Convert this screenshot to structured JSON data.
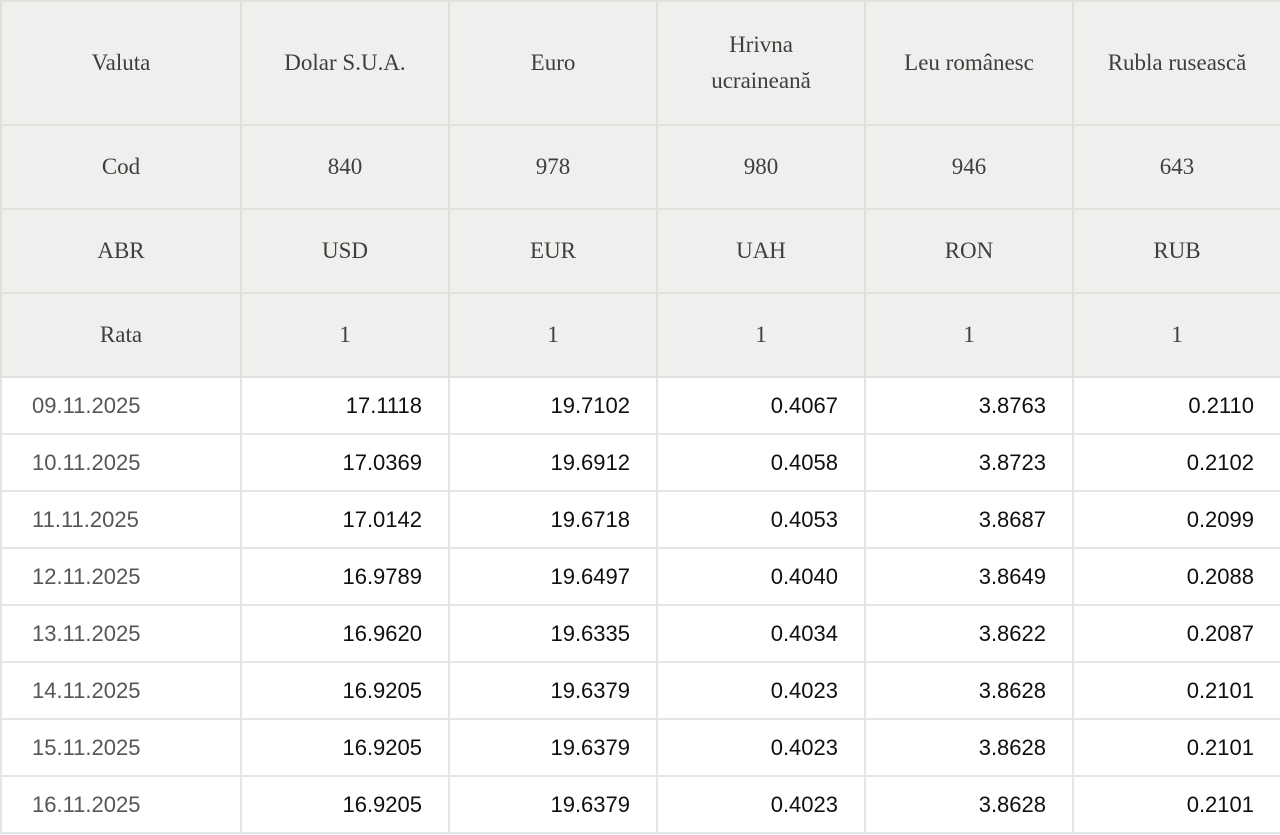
{
  "chart_data": {
    "type": "table",
    "columns": [
      "Valuta",
      "Dolar S.U.A.",
      "Euro",
      "Hrivna ucraineană",
      "Leu românesc",
      "Rubla rusească"
    ],
    "meta_rows": [
      {
        "label": "Cod",
        "values": [
          "840",
          "978",
          "980",
          "946",
          "643"
        ]
      },
      {
        "label": "ABR",
        "values": [
          "USD",
          "EUR",
          "UAH",
          "RON",
          "RUB"
        ]
      },
      {
        "label": "Rata",
        "values": [
          "1",
          "1",
          "1",
          "1",
          "1"
        ]
      }
    ],
    "rate_rows": [
      {
        "date": "09.11.2025",
        "values": [
          "17.1118",
          "19.7102",
          "0.4067",
          "3.8763",
          "0.2110"
        ]
      },
      {
        "date": "10.11.2025",
        "values": [
          "17.0369",
          "19.6912",
          "0.4058",
          "3.8723",
          "0.2102"
        ]
      },
      {
        "date": "11.11.2025",
        "values": [
          "17.0142",
          "19.6718",
          "0.4053",
          "3.8687",
          "0.2099"
        ]
      },
      {
        "date": "12.11.2025",
        "values": [
          "16.9789",
          "19.6497",
          "0.4040",
          "3.8649",
          "0.2088"
        ]
      },
      {
        "date": "13.11.2025",
        "values": [
          "16.9620",
          "19.6335",
          "0.4034",
          "3.8622",
          "0.2087"
        ]
      },
      {
        "date": "14.11.2025",
        "values": [
          "16.9205",
          "19.6379",
          "0.4023",
          "3.8628",
          "0.2101"
        ]
      },
      {
        "date": "15.11.2025",
        "values": [
          "16.9205",
          "19.6379",
          "0.4023",
          "3.8628",
          "0.2101"
        ]
      },
      {
        "date": "16.11.2025",
        "values": [
          "16.9205",
          "19.6379",
          "0.4023",
          "3.8628",
          "0.2101"
        ]
      }
    ]
  },
  "colors": {
    "header_bg": "#f0efed",
    "header_border": "#e2e0dc",
    "header_text": "#3f3e3c",
    "row_bg": "#ffffff",
    "row_border": "#e5e5e5",
    "date_text": "#555659",
    "value_text": "#0f0f0f"
  }
}
